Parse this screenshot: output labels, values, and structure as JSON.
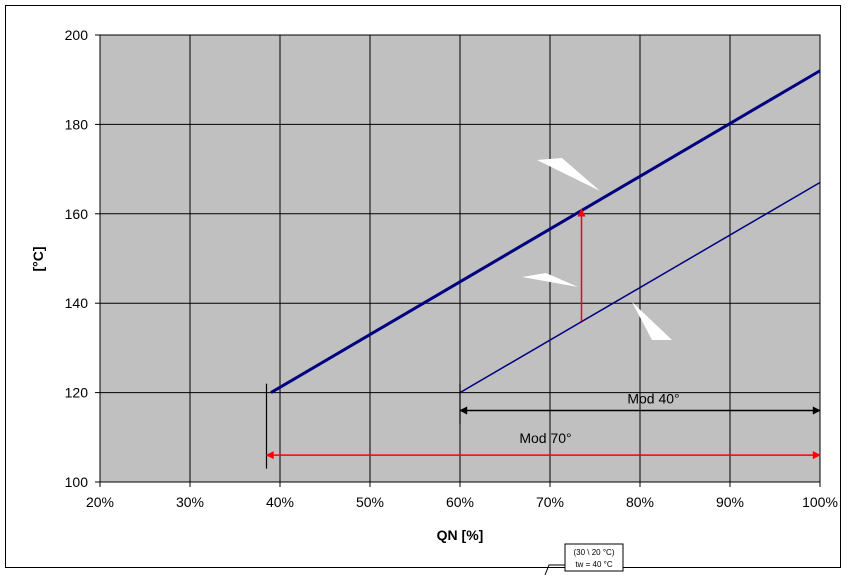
{
  "chart_data": {
    "type": "line",
    "xlabel": "QN [%]",
    "ylabel": "[°C]",
    "xlim": [
      20,
      100
    ],
    "ylim": [
      100,
      200
    ],
    "x_ticks": [
      20,
      30,
      40,
      50,
      60,
      70,
      80,
      90,
      100
    ],
    "x_tick_labels": [
      "20%",
      "30%",
      "40%",
      "50%",
      "60%",
      "70%",
      "80%",
      "90%",
      "100%"
    ],
    "y_ticks": [
      100,
      120,
      140,
      160,
      180,
      200
    ],
    "y_tick_labels": [
      "100",
      "120",
      "140",
      "160",
      "180",
      "200"
    ],
    "grid": true,
    "plot_background": "#c0c0c0",
    "series": [
      {
        "color": "#000080",
        "x": [
          39,
          100
        ],
        "y": [
          120,
          192
        ]
      },
      {
        "color": "#000080",
        "x": [
          60,
          100
        ],
        "y": [
          120,
          167
        ]
      }
    ],
    "ranges": [
      {
        "label": "Mod 40°",
        "x_start": 60,
        "x_end": 100,
        "y": 116,
        "color": "#000000"
      },
      {
        "label": "Mod 70°",
        "x_start": 38.5,
        "x_end": 100,
        "y": 106,
        "color": "#ff0000"
      }
    ],
    "arrow": {
      "x": 73.5,
      "y_start": 136,
      "y_end": 161,
      "color": "#ff0000"
    },
    "note": {
      "line1": "(30 \\ 20 °C)",
      "line2": "tw = 40 °C"
    }
  }
}
